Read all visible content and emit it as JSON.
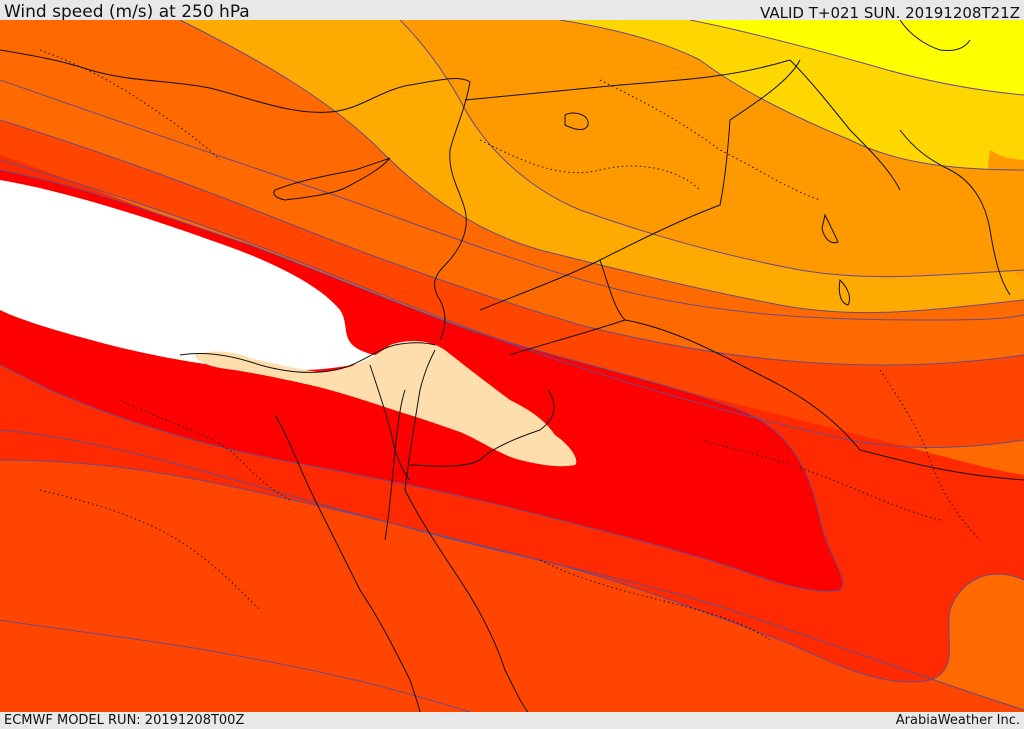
{
  "header": {
    "title": "Wind speed (m/s) at 250 hPa",
    "valid": "VALID T+021 SUN. 20191208T21Z"
  },
  "footer": {
    "model_run": "ECMWF MODEL RUN: 20191208T00Z",
    "credit": "ArabiaWeather Inc."
  },
  "map": {
    "variable": "Wind speed",
    "units": "m/s",
    "level": "250 hPa",
    "colors": {
      "band_yellow": "#ffff00",
      "band_yellow_orange": "#ffd700",
      "band_light_orange": "#ffaa00",
      "band_orange": "#ff9900",
      "band_dark_orange": "#ff6a00",
      "band_red_orange": "#ff4500",
      "band_orange_red": "#ff2a00",
      "band_red": "#ff0000",
      "band_peach": "#ffdead",
      "band_white": "#ffffff",
      "contour_line": "#6a4a8a",
      "coastline": "#111111"
    }
  }
}
